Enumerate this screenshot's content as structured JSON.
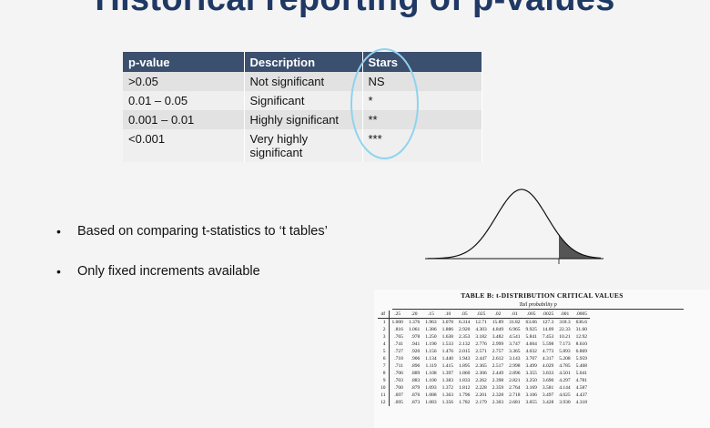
{
  "slide": {
    "title": "Historical reporting of p-values"
  },
  "pvalue_table": {
    "headers": [
      "p-value",
      "Description",
      "Stars"
    ],
    "rows": [
      {
        "pvalue": ">0.05",
        "description": "Not significant",
        "stars": "NS"
      },
      {
        "pvalue": "0.01 – 0.05",
        "description": "Significant",
        "stars": "*"
      },
      {
        "pvalue": "0.001 – 0.01",
        "description": "Highly significant",
        "stars": "**"
      },
      {
        "pvalue": "<0.001",
        "description": "Very highly significant",
        "stars": "***"
      }
    ],
    "header_color": "#3b4f6e",
    "highlight_color": "#8fd3ee"
  },
  "bullets": [
    "Based on comparing t-statistics to ‘t tables’",
    "Only fixed increments available"
  ],
  "t_table": {
    "title": "TABLE B: t-DISTRIBUTION CRITICAL VALUES",
    "tail_label": "Tail probability p",
    "columns": [
      "df",
      ".25",
      ".20",
      ".15",
      ".10",
      ".05",
      ".025",
      ".02",
      ".01",
      ".005",
      ".0025",
      ".001",
      ".0005"
    ],
    "rows": [
      [
        "1",
        "1.000",
        "1.376",
        "1.963",
        "3.078",
        "6.314",
        "12.71",
        "15.89",
        "31.82",
        "63.66",
        "127.3",
        "318.3",
        "636.6"
      ],
      [
        "2",
        ".816",
        "1.061",
        "1.386",
        "1.886",
        "2.920",
        "4.303",
        "4.849",
        "6.965",
        "9.925",
        "14.09",
        "22.33",
        "31.60"
      ],
      [
        "3",
        ".765",
        ".978",
        "1.250",
        "1.638",
        "2.353",
        "3.182",
        "3.482",
        "4.541",
        "5.841",
        "7.453",
        "10.21",
        "12.92"
      ],
      [
        "4",
        ".741",
        ".941",
        "1.190",
        "1.533",
        "2.132",
        "2.776",
        "2.999",
        "3.747",
        "4.604",
        "5.598",
        "7.173",
        "8.610"
      ],
      [
        "5",
        ".727",
        ".920",
        "1.156",
        "1.476",
        "2.015",
        "2.571",
        "2.757",
        "3.365",
        "4.032",
        "4.773",
        "5.893",
        "6.869"
      ],
      [
        "6",
        ".718",
        ".906",
        "1.134",
        "1.440",
        "1.943",
        "2.447",
        "2.612",
        "3.143",
        "3.707",
        "4.317",
        "5.208",
        "5.959"
      ],
      [
        "7",
        ".711",
        ".896",
        "1.119",
        "1.415",
        "1.895",
        "2.365",
        "2.517",
        "2.998",
        "3.499",
        "4.029",
        "4.785",
        "5.408"
      ],
      [
        "8",
        ".706",
        ".889",
        "1.108",
        "1.397",
        "1.860",
        "2.306",
        "2.449",
        "2.896",
        "3.355",
        "3.833",
        "4.501",
        "5.041"
      ],
      [
        "9",
        ".703",
        ".883",
        "1.100",
        "1.383",
        "1.833",
        "2.262",
        "2.398",
        "2.821",
        "3.250",
        "3.690",
        "4.297",
        "4.781"
      ],
      [
        "10",
        ".700",
        ".879",
        "1.093",
        "1.372",
        "1.812",
        "2.228",
        "2.359",
        "2.764",
        "3.169",
        "3.581",
        "4.144",
        "4.587"
      ],
      [
        "11",
        ".697",
        ".876",
        "1.088",
        "1.363",
        "1.796",
        "2.201",
        "2.328",
        "2.718",
        "3.106",
        "3.497",
        "4.025",
        "4.437"
      ],
      [
        "12",
        ".695",
        ".873",
        "1.083",
        "1.356",
        "1.782",
        "2.179",
        "2.303",
        "2.681",
        "3.055",
        "3.428",
        "3.930",
        "4.318"
      ]
    ]
  }
}
